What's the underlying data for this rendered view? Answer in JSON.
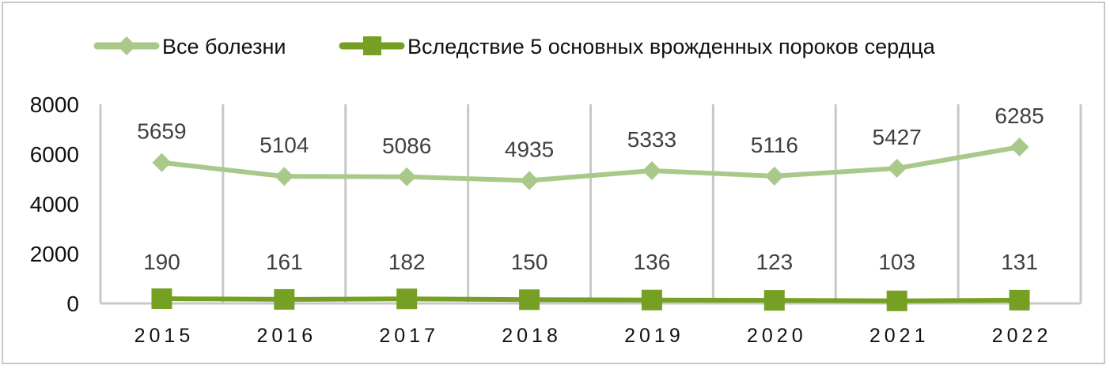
{
  "chart_data": {
    "type": "line",
    "categories": [
      "2015",
      "2016",
      "2017",
      "2018",
      "2019",
      "2020",
      "2021",
      "2022"
    ],
    "series": [
      {
        "name": "Все болезни",
        "values": [
          5659,
          5104,
          5086,
          4935,
          5333,
          5116,
          5427,
          6285
        ],
        "color": "#a9c98a",
        "marker": "diamond"
      },
      {
        "name": "Вследствие 5 основных врожденных пороков сердца",
        "values": [
          190,
          161,
          182,
          150,
          136,
          123,
          103,
          131
        ],
        "color": "#76a023",
        "marker": "square"
      }
    ],
    "ylim": [
      0,
      8000
    ],
    "yticks": [
      0,
      2000,
      4000,
      6000,
      8000
    ],
    "grid": "vertical",
    "legend": "top",
    "data_labels": true
  }
}
